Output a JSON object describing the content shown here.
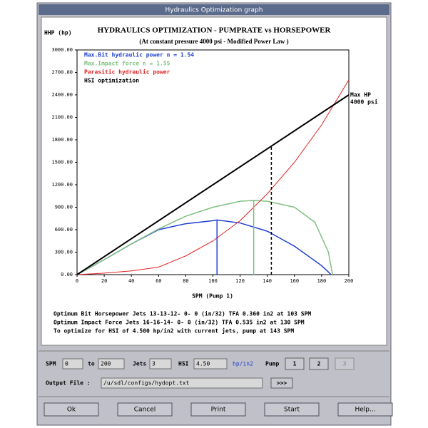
{
  "window": {
    "title": "Hydraulics Optimization graph"
  },
  "chart_data": {
    "type": "line",
    "title": "HYDRAULICS OPTIMIZATION - PUMPRATE vs HORSEPOWER",
    "subtitle": "(At constant pressure 4000 psi - Modified Power Law )",
    "y_label": "HHP (hp)",
    "x_label": "SPM (Pump 1)",
    "xlim": [
      0,
      200
    ],
    "xticks": [
      0,
      20,
      40,
      60,
      80,
      100,
      120,
      140,
      160,
      180,
      200
    ],
    "ylim": [
      0,
      3000
    ],
    "yticks": [
      {
        "value": 0,
        "label": "0.00"
      },
      {
        "value": 300,
        "label": "300.00"
      },
      {
        "value": 600,
        "label": "600.00"
      },
      {
        "value": 900,
        "label": "900.00"
      },
      {
        "value": 1200,
        "label": "1200.00"
      },
      {
        "value": 1500,
        "label": "1500.00"
      },
      {
        "value": 1800,
        "label": "1800.00"
      },
      {
        "value": 2100,
        "label": "2100.00"
      },
      {
        "value": 2400,
        "label": "2400.00"
      },
      {
        "value": 2700,
        "label": "2700.00"
      },
      {
        "value": 3000,
        "label": "3000.00"
      }
    ],
    "series": [
      {
        "name": "Max.Bit hydraulic power n = 1.54",
        "color": "#1f3fd0",
        "x": [
          0,
          20,
          40,
          60,
          80,
          100,
          103,
          120,
          140,
          160,
          180,
          187
        ],
        "values": [
          0,
          200,
          410,
          600,
          680,
          720,
          730,
          690,
          580,
          380,
          120,
          0
        ]
      },
      {
        "name": "Max.Impact force n = 1.55",
        "color": "#80c080",
        "x": [
          0,
          20,
          40,
          60,
          80,
          100,
          120,
          130,
          140,
          160,
          175,
          185,
          188
        ],
        "values": [
          0,
          200,
          410,
          610,
          780,
          900,
          980,
          990,
          980,
          900,
          700,
          300,
          0
        ]
      },
      {
        "name": "Parasitic hydraulic power",
        "color": "#e02020",
        "x": [
          0,
          20,
          40,
          60,
          80,
          100,
          120,
          140,
          160,
          180,
          200
        ],
        "values": [
          0,
          20,
          50,
          100,
          250,
          450,
          720,
          1080,
          1500,
          2000,
          2600
        ]
      },
      {
        "name": "HSI optimization",
        "color": "#000000",
        "x": [
          0,
          200
        ],
        "values": [
          0,
          2400
        ]
      }
    ],
    "markers": [
      {
        "x": 103,
        "value": 730,
        "color": "#1f3fd0",
        "dashed": false
      },
      {
        "x": 130,
        "value": 990,
        "color": "#80c080",
        "dashed": false
      },
      {
        "x": 143,
        "value": 1716,
        "color": "#000000",
        "dashed": true
      }
    ],
    "annotation": [
      "Max HP",
      "4000 psi"
    ]
  },
  "results": [
    "Optimum Bit Horsepower Jets  13-13-12- 0- 0 (in/32) TFA 0.360 in2 at 103 SPM",
    "Optimum Impact Force   Jets  16-16-14- 0- 0 (in/32) TFA 0.535 in2 at 130 SPM",
    "To optimize for HSI of   4.500 hp/in2 with current jets, pump at    143 SPM"
  ],
  "form": {
    "spm_label": "SPM",
    "spm_from": "0",
    "to_label": "to",
    "spm_to": "200",
    "jets_label": "Jets",
    "jets": "3",
    "hsi_label": "HSI",
    "hsi": "4.50",
    "hsi_unit": "hp/in2",
    "pump_label": "Pump",
    "pumps": [
      "1",
      "2",
      "3"
    ],
    "output_label": "Output File :",
    "output_file": "/u/sdl/configs/hydopt.txt",
    "browse": ">>>"
  },
  "buttons": [
    "Ok",
    "Cancel",
    "Print",
    "Start",
    "Help..."
  ]
}
